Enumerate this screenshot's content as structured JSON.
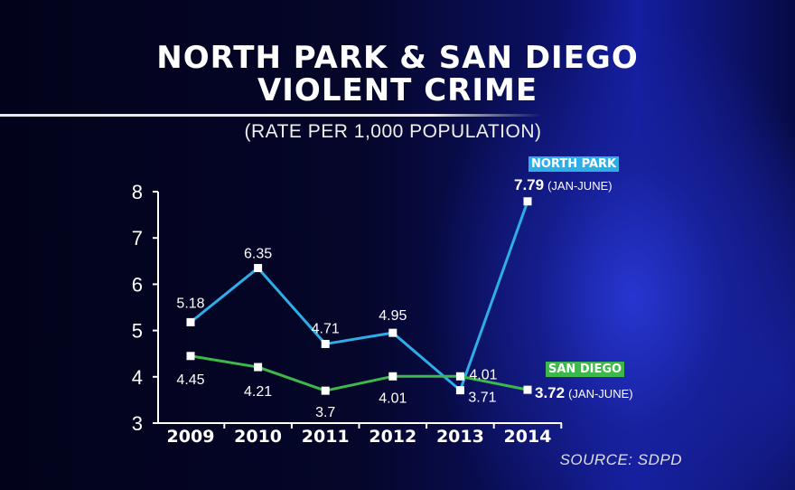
{
  "title_line1": "NORTH PARK & SAN DIEGO",
  "title_line2": "VIOLENT CRIME",
  "subtitle": "(RATE PER 1,000 POPULATION)",
  "source": "SOURCE: SDPD",
  "colors": {
    "north_park": "#2eaee6",
    "san_diego": "#3db84a",
    "axis": "#ffffff",
    "background": "#03041f"
  },
  "legend": {
    "north_park": "NORTH PARK",
    "san_diego": "SAN DIEGO"
  },
  "end_labels": {
    "north_park_value": "7.79",
    "san_diego_value": "3.72",
    "period": "(JAN-JUNE)"
  },
  "chart_data": {
    "type": "line",
    "title": "NORTH PARK & SAN DIEGO VIOLENT CRIME",
    "subtitle": "(RATE PER 1,000 POPULATION)",
    "xlabel": "",
    "ylabel": "",
    "categories": [
      "2009",
      "2010",
      "2011",
      "2012",
      "2013",
      "2014"
    ],
    "ylim": [
      3,
      8
    ],
    "yticks": [
      "3",
      "4",
      "5",
      "6",
      "7",
      "8"
    ],
    "grid": false,
    "legend_placement": "labels at right end of lines",
    "series": [
      {
        "name": "NORTH PARK",
        "color": "#2eaee6",
        "values": [
          5.18,
          6.35,
          4.71,
          4.95,
          3.71,
          7.79
        ],
        "labels": [
          "5.18",
          "6.35",
          "4.71",
          "4.95",
          "3.71",
          "7.79"
        ]
      },
      {
        "name": "SAN DIEGO",
        "color": "#3db84a",
        "values": [
          4.45,
          4.21,
          3.7,
          4.01,
          4.01,
          3.72
        ],
        "labels": [
          "4.45",
          "4.21",
          "3.7",
          "4.01",
          "4.01",
          "3.72"
        ]
      }
    ]
  }
}
